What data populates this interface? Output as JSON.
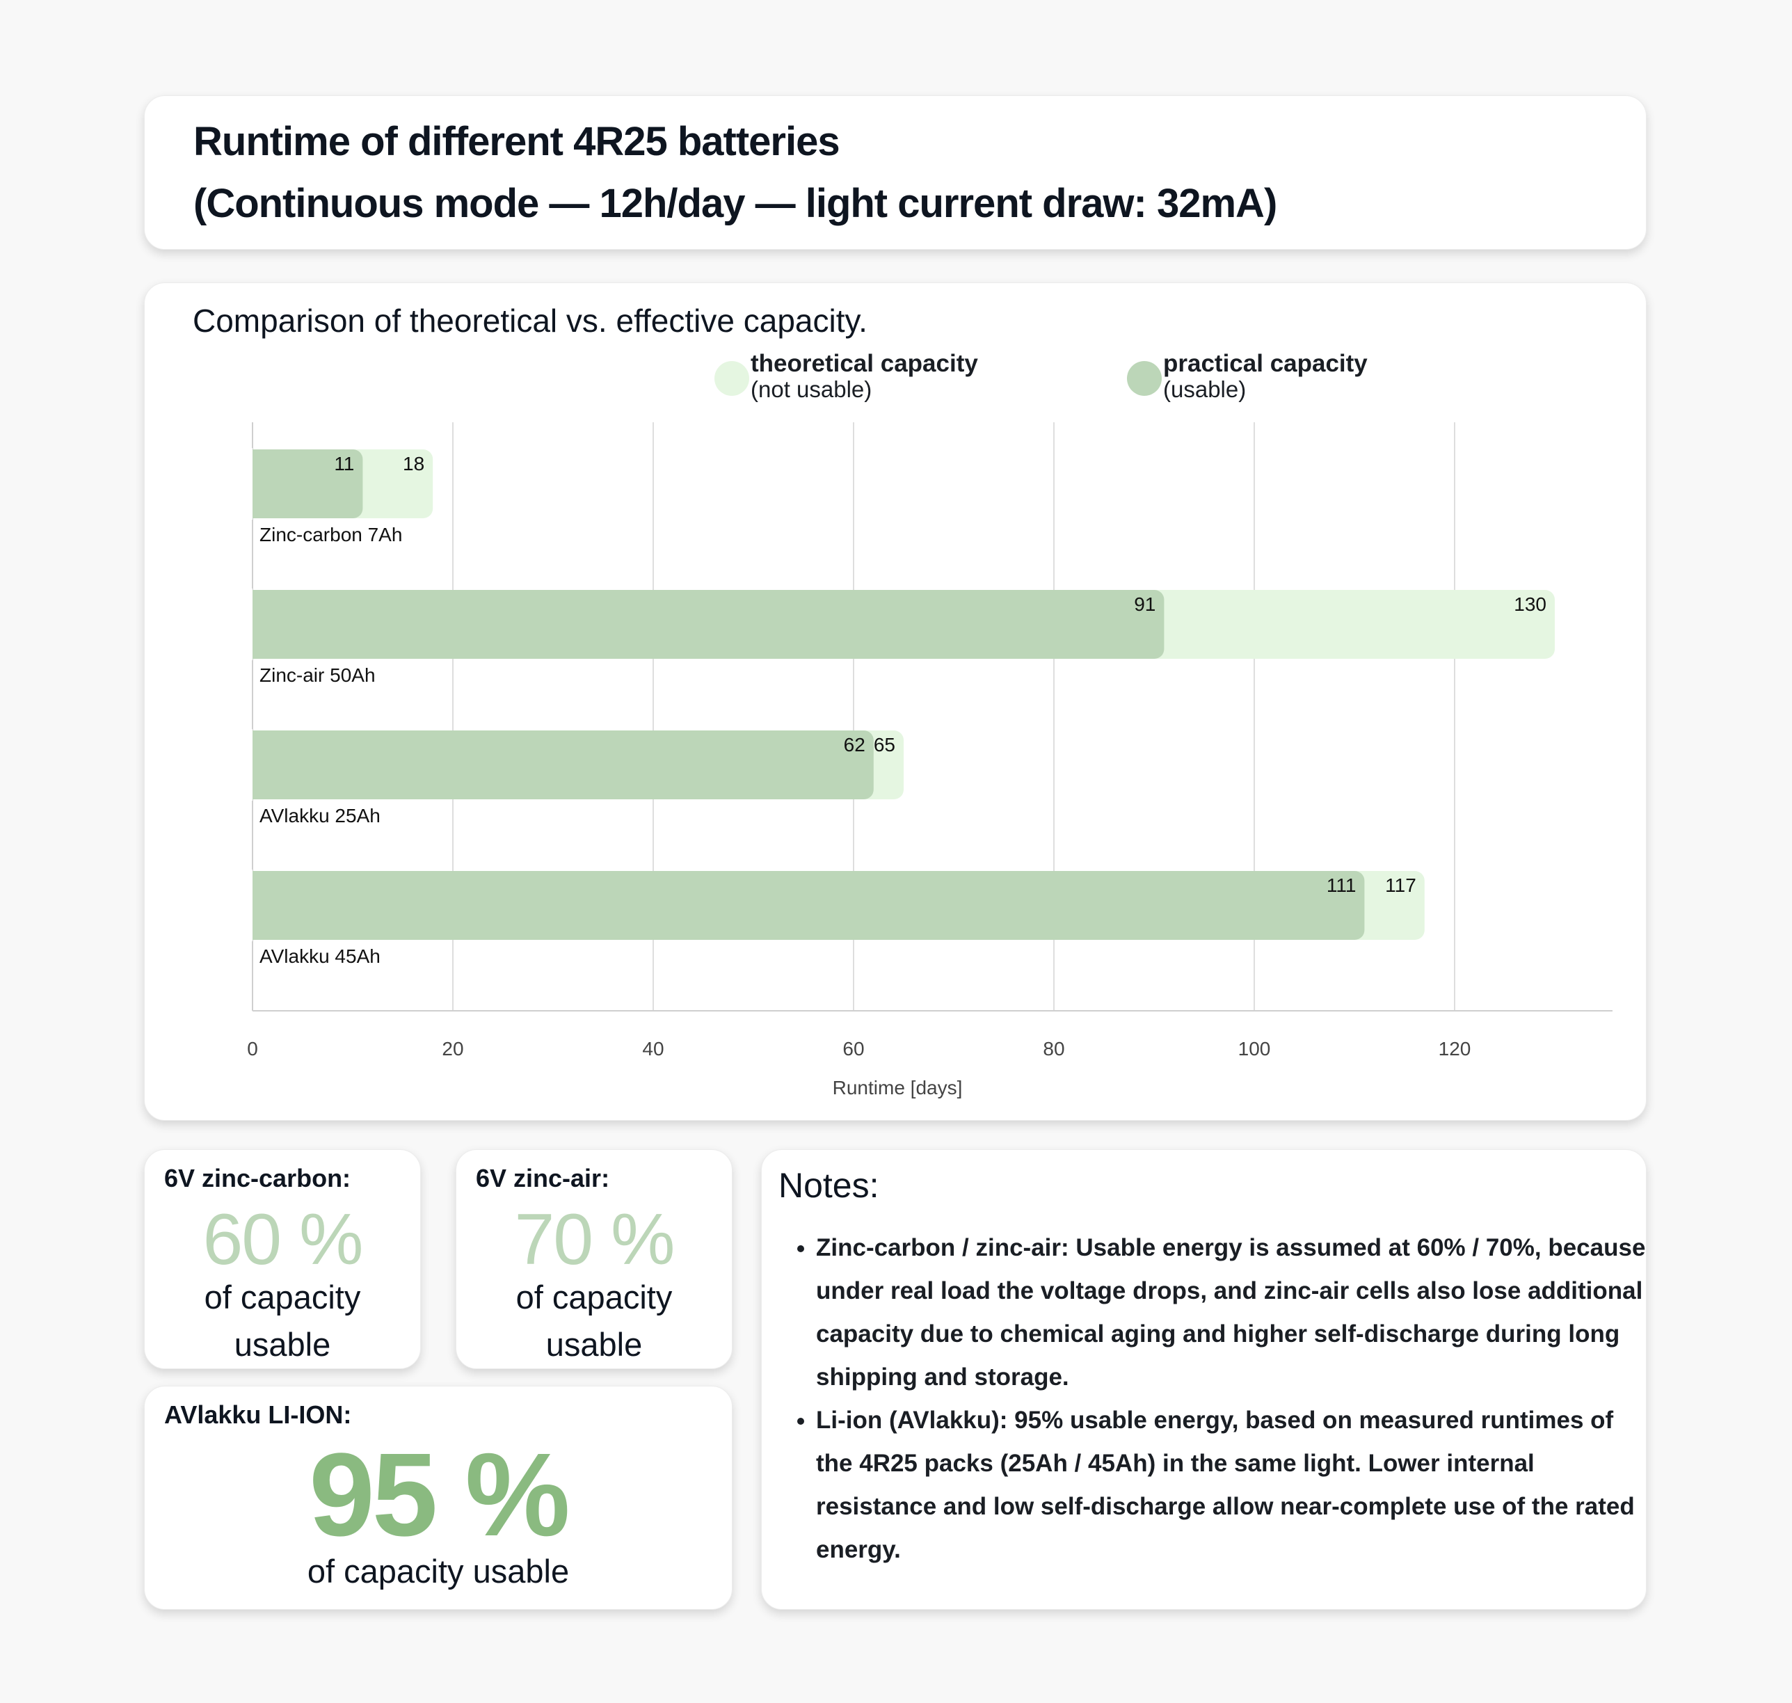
{
  "header": {
    "title_line1": "Runtime of different 4R25 batteries",
    "title_line2": "(Continuous mode — 12h/day — light current draw: 32mA)"
  },
  "chart_data": {
    "type": "bar",
    "orientation": "horizontal",
    "subtitle": "Comparison of theoretical vs. effective capacity.",
    "categories": [
      "Zinc-carbon 7Ah",
      "Zinc-air 50Ah",
      "AVlakku 25Ah",
      "AVlakku 45Ah"
    ],
    "series": [
      {
        "name": "theoretical capacity",
        "note": "(not usable)",
        "values": [
          18,
          130,
          65,
          117
        ],
        "color": "#e5f6e1"
      },
      {
        "name": "practical capacity",
        "note": "(usable)",
        "values": [
          11,
          91,
          62,
          111
        ],
        "color": "#bcd6b8"
      }
    ],
    "xlabel": "Runtime [days]",
    "xlim": [
      0,
      135
    ],
    "xticks": [
      0,
      20,
      40,
      60,
      80,
      100,
      120
    ],
    "grid": "vertical",
    "legend": "top-right"
  },
  "stats": [
    {
      "label": "6V zinc-carbon:",
      "percent": "60 %",
      "sub1": "of capacity",
      "sub2": "usable"
    },
    {
      "label": "6V zinc-air:",
      "percent": "70 %",
      "sub1": "of capacity",
      "sub2": "usable"
    },
    {
      "label": "AVlakku LI-ION:",
      "percent": "95 %",
      "sub": "of capacity usable",
      "color": "#8aba80"
    }
  ],
  "notes": {
    "heading": "Notes:",
    "items": [
      "Zinc-carbon / zinc-air: Usable energy is assumed at 60% / 70%, because under real load the voltage drops, and zinc-air cells also lose additional capacity due to chemical aging and higher self-discharge during long shipping and storage.",
      "Li-ion (AVlakku): 95% usable energy, based on measured runtimes of the 4R25 packs (25Ah / 45Ah) in the same light. Lower internal resistance and low self-discharge allow near-complete use of the rated energy."
    ]
  }
}
